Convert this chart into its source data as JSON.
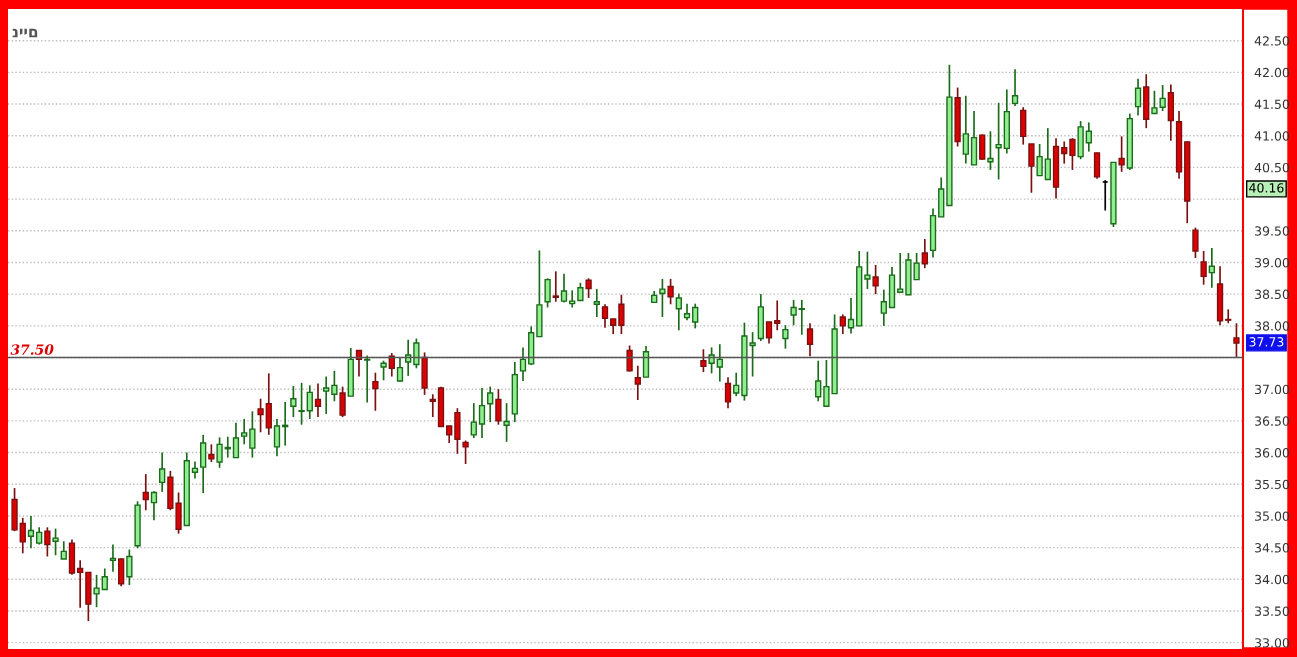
{
  "chart_data": {
    "type": "candlestick",
    "categories": [
      null,
      null,
      null,
      null,
      null,
      null,
      null,
      null,
      null,
      null,
      null,
      null,
      null,
      null,
      null,
      null,
      null,
      null,
      null,
      null,
      null,
      null,
      null,
      null,
      null,
      null,
      null,
      null,
      null,
      null,
      null,
      null,
      null,
      null,
      null,
      null,
      null,
      null,
      null,
      null,
      null,
      null,
      null,
      null,
      null,
      null,
      null,
      null,
      null,
      null,
      null,
      null,
      null,
      null,
      null,
      null,
      null,
      null,
      null,
      null,
      null,
      null,
      null,
      null,
      null,
      null,
      null,
      null,
      null,
      null,
      null,
      null,
      null,
      null,
      null,
      null,
      null,
      null,
      null,
      null,
      null,
      null,
      null,
      null,
      null,
      null,
      null,
      null,
      null,
      null,
      null,
      null,
      null,
      null,
      null,
      null,
      null,
      null,
      null,
      null,
      null,
      null,
      null,
      null,
      null,
      null,
      null,
      null,
      null,
      null,
      null,
      null,
      null,
      null,
      null,
      null,
      null,
      null,
      null,
      null,
      null,
      null,
      null,
      null,
      null,
      null,
      null,
      null,
      null,
      null,
      null,
      null,
      null,
      null,
      null,
      null,
      null,
      null,
      null,
      null,
      null,
      null,
      null,
      null,
      null,
      null,
      null,
      null,
      null,
      null
    ],
    "ohlc": [
      [
        35.26,
        35.44,
        34.76,
        34.78
      ],
      [
        34.88,
        34.97,
        34.41,
        34.59
      ],
      [
        34.68,
        35.0,
        34.49,
        34.77
      ],
      [
        34.57,
        34.82,
        34.55,
        34.74
      ],
      [
        34.76,
        34.82,
        34.36,
        34.55
      ],
      [
        34.6,
        34.8,
        34.38,
        34.65
      ],
      [
        34.32,
        34.6,
        34.32,
        34.44
      ],
      [
        34.57,
        34.63,
        34.07,
        34.1
      ],
      [
        34.17,
        34.3,
        33.55,
        34.11
      ],
      [
        34.11,
        34.11,
        33.34,
        33.61
      ],
      [
        33.77,
        34.07,
        33.56,
        33.86
      ],
      [
        33.84,
        34.17,
        33.84,
        34.04
      ],
      [
        34.3,
        34.55,
        34.12,
        34.33
      ],
      [
        34.32,
        34.33,
        33.89,
        33.93
      ],
      [
        34.04,
        34.47,
        33.91,
        34.36
      ],
      [
        34.53,
        35.23,
        34.49,
        35.17
      ],
      [
        35.37,
        35.66,
        35.09,
        35.26
      ],
      [
        35.21,
        35.39,
        34.93,
        35.37
      ],
      [
        35.53,
        36.0,
        35.38,
        35.74
      ],
      [
        35.61,
        35.71,
        35.09,
        35.12
      ],
      [
        35.2,
        35.37,
        34.72,
        34.79
      ],
      [
        34.85,
        36.0,
        34.85,
        35.87
      ],
      [
        35.69,
        35.86,
        35.59,
        35.75
      ],
      [
        35.77,
        36.28,
        35.36,
        36.15
      ],
      [
        35.97,
        36.13,
        35.85,
        35.9
      ],
      [
        35.85,
        36.24,
        35.76,
        36.13
      ],
      [
        36.06,
        36.25,
        35.92,
        36.08
      ],
      [
        35.92,
        36.47,
        35.92,
        36.23
      ],
      [
        36.26,
        36.53,
        36.13,
        36.31
      ],
      [
        36.07,
        36.65,
        35.92,
        36.37
      ],
      [
        36.69,
        36.85,
        36.32,
        36.6
      ],
      [
        36.77,
        37.25,
        36.28,
        36.39
      ],
      [
        36.09,
        36.53,
        35.94,
        36.42
      ],
      [
        36.41,
        36.8,
        36.11,
        36.43
      ],
      [
        36.73,
        37.05,
        36.56,
        36.85
      ],
      [
        36.65,
        37.1,
        36.44,
        36.66
      ],
      [
        36.66,
        37.06,
        36.53,
        36.95
      ],
      [
        36.84,
        37.09,
        36.56,
        36.73
      ],
      [
        36.97,
        37.2,
        36.61,
        37.02
      ],
      [
        36.92,
        37.29,
        36.81,
        37.06
      ],
      [
        36.94,
        37.04,
        36.56,
        36.59
      ],
      [
        36.89,
        37.65,
        36.89,
        37.47
      ],
      [
        37.61,
        37.62,
        37.2,
        37.47
      ],
      [
        37.46,
        37.53,
        36.79,
        37.47
      ],
      [
        37.12,
        37.26,
        36.66,
        37.01
      ],
      [
        37.35,
        37.45,
        37.14,
        37.41
      ],
      [
        37.52,
        37.57,
        37.2,
        37.33
      ],
      [
        37.13,
        37.5,
        37.12,
        37.34
      ],
      [
        37.43,
        37.78,
        37.21,
        37.54
      ],
      [
        37.39,
        37.8,
        37.33,
        37.73
      ],
      [
        37.5,
        37.58,
        36.91,
        37.02
      ],
      [
        36.84,
        36.92,
        36.56,
        36.81
      ],
      [
        37.02,
        37.04,
        36.41,
        36.41
      ],
      [
        36.42,
        36.42,
        36.15,
        36.28
      ],
      [
        36.63,
        36.7,
        35.98,
        36.21
      ],
      [
        36.16,
        36.19,
        35.82,
        36.09
      ],
      [
        36.28,
        36.78,
        36.23,
        36.48
      ],
      [
        36.45,
        37.02,
        36.23,
        36.74
      ],
      [
        36.77,
        37.04,
        36.48,
        36.94
      ],
      [
        36.84,
        37.0,
        36.44,
        36.5
      ],
      [
        36.43,
        36.78,
        36.17,
        36.49
      ],
      [
        36.61,
        37.43,
        36.48,
        37.23
      ],
      [
        37.29,
        37.66,
        37.13,
        37.47
      ],
      [
        37.4,
        37.99,
        37.38,
        37.89
      ],
      [
        37.83,
        39.19,
        37.83,
        38.33
      ],
      [
        38.38,
        38.75,
        38.29,
        38.73
      ],
      [
        38.47,
        38.86,
        38.38,
        38.45
      ],
      [
        38.39,
        38.82,
        38.37,
        38.55
      ],
      [
        38.35,
        38.56,
        38.29,
        38.39
      ],
      [
        38.4,
        38.68,
        38.4,
        38.6
      ],
      [
        38.72,
        38.75,
        38.44,
        38.59
      ],
      [
        38.34,
        38.58,
        38.14,
        38.38
      ],
      [
        38.3,
        38.34,
        37.97,
        38.12
      ],
      [
        38.11,
        38.11,
        37.87,
        38.01
      ],
      [
        38.34,
        38.49,
        37.87,
        38.01
      ],
      [
        37.61,
        37.69,
        37.28,
        37.29
      ],
      [
        37.18,
        37.37,
        36.83,
        37.08
      ],
      [
        37.19,
        37.68,
        37.19,
        37.59
      ],
      [
        38.37,
        38.55,
        38.37,
        38.48
      ],
      [
        38.51,
        38.74,
        38.14,
        38.58
      ],
      [
        38.62,
        38.74,
        38.34,
        38.46
      ],
      [
        38.27,
        38.51,
        37.93,
        38.44
      ],
      [
        38.13,
        38.35,
        38.09,
        38.19
      ],
      [
        38.06,
        38.35,
        37.96,
        38.29
      ],
      [
        37.45,
        37.63,
        37.27,
        37.36
      ],
      [
        37.41,
        37.66,
        37.25,
        37.54
      ],
      [
        37.35,
        37.71,
        37.12,
        37.47
      ],
      [
        37.09,
        37.19,
        36.7,
        36.8
      ],
      [
        36.94,
        37.26,
        36.89,
        37.06
      ],
      [
        36.9,
        38.05,
        36.82,
        37.84
      ],
      [
        37.69,
        37.9,
        37.2,
        37.73
      ],
      [
        37.8,
        38.5,
        37.76,
        38.3
      ],
      [
        38.06,
        38.06,
        37.72,
        37.81
      ],
      [
        38.08,
        38.4,
        37.93,
        38.04
      ],
      [
        37.8,
        38.01,
        37.64,
        37.94
      ],
      [
        38.17,
        38.41,
        38.01,
        38.29
      ],
      [
        38.26,
        38.41,
        37.86,
        38.27
      ],
      [
        37.95,
        38.04,
        37.52,
        37.71
      ],
      [
        36.88,
        37.45,
        36.81,
        37.13
      ],
      [
        36.73,
        37.46,
        36.73,
        37.04
      ],
      [
        36.93,
        38.18,
        36.93,
        37.95
      ],
      [
        38.14,
        38.18,
        37.87,
        38.0
      ],
      [
        37.97,
        38.44,
        37.88,
        38.1
      ],
      [
        38.0,
        39.18,
        38.0,
        38.93
      ],
      [
        38.74,
        39.17,
        38.58,
        38.8
      ],
      [
        38.77,
        38.96,
        38.5,
        38.63
      ],
      [
        38.2,
        38.57,
        38.0,
        38.38
      ],
      [
        38.29,
        38.93,
        38.29,
        38.8
      ],
      [
        38.53,
        39.15,
        38.53,
        38.58
      ],
      [
        38.49,
        39.15,
        38.49,
        39.04
      ],
      [
        38.73,
        39.15,
        38.73,
        38.99
      ],
      [
        39.15,
        39.37,
        38.91,
        38.98
      ],
      [
        39.19,
        39.85,
        39.08,
        39.74
      ],
      [
        39.72,
        40.34,
        39.72,
        40.16
      ],
      [
        39.9,
        42.12,
        39.9,
        41.61
      ],
      [
        41.6,
        41.76,
        40.83,
        40.91
      ],
      [
        40.71,
        41.63,
        40.56,
        41.03
      ],
      [
        40.54,
        41.39,
        40.54,
        40.97
      ],
      [
        41.01,
        41.02,
        40.62,
        40.63
      ],
      [
        40.59,
        41.07,
        40.46,
        40.64
      ],
      [
        40.81,
        41.52,
        40.31,
        40.86
      ],
      [
        40.8,
        41.73,
        40.72,
        41.38
      ],
      [
        41.51,
        42.05,
        41.47,
        41.63
      ],
      [
        41.4,
        41.45,
        40.86,
        40.99
      ],
      [
        40.87,
        40.87,
        40.1,
        40.52
      ],
      [
        40.37,
        40.87,
        40.37,
        40.67
      ],
      [
        40.31,
        41.12,
        40.31,
        40.63
      ],
      [
        40.83,
        40.96,
        40.01,
        40.19
      ],
      [
        40.81,
        40.91,
        40.56,
        40.72
      ],
      [
        40.94,
        40.96,
        40.46,
        40.69
      ],
      [
        40.67,
        41.23,
        40.63,
        41.14
      ],
      [
        40.89,
        41.21,
        40.75,
        41.07
      ],
      [
        40.73,
        40.73,
        40.32,
        40.35
      ],
      [
        40.27,
        40.3,
        39.82,
        40.27
      ],
      [
        39.61,
        40.58,
        39.56,
        40.58
      ],
      [
        40.64,
        40.99,
        40.43,
        40.54
      ],
      [
        40.49,
        41.35,
        40.46,
        41.27
      ],
      [
        41.46,
        41.9,
        41.32,
        41.75
      ],
      [
        41.77,
        41.97,
        41.12,
        41.26
      ],
      [
        41.35,
        41.71,
        41.35,
        41.44
      ],
      [
        41.45,
        41.8,
        41.39,
        41.59
      ],
      [
        41.68,
        41.81,
        40.92,
        41.24
      ],
      [
        41.22,
        41.39,
        40.32,
        40.43
      ],
      [
        40.9,
        40.91,
        39.62,
        39.97
      ],
      [
        39.51,
        39.55,
        39.07,
        39.18
      ],
      [
        39.01,
        39.18,
        38.65,
        38.78
      ],
      [
        38.84,
        39.23,
        38.6,
        38.94
      ],
      [
        38.66,
        38.94,
        38.01,
        38.08
      ],
      [
        38.1,
        38.26,
        38.04,
        38.09
      ],
      [
        37.81,
        38.04,
        37.51,
        37.73
      ]
    ],
    "ylim": [
      32.9,
      43.0
    ],
    "yticks": [
      {
        "value": 33,
        "label": "33.00"
      },
      {
        "value": 33.5,
        "label": "33.50"
      },
      {
        "value": 34,
        "label": "34.00"
      },
      {
        "value": 34.5,
        "label": "34.50"
      },
      {
        "value": 35,
        "label": "35.00"
      },
      {
        "value": 35.5,
        "label": "35.50"
      },
      {
        "value": 36,
        "label": "36.00"
      },
      {
        "value": 36.5,
        "label": "36.50"
      },
      {
        "value": 37,
        "label": "37.00"
      },
      {
        "value": 37.5,
        "label": null
      },
      {
        "value": 38,
        "label": "38.00"
      },
      {
        "value": 38.5,
        "label": "38.50"
      },
      {
        "value": 39,
        "label": "39.00"
      },
      {
        "value": 39.5,
        "label": "39.50"
      },
      {
        "value": 40,
        "label": null
      },
      {
        "value": 40.5,
        "label": "40.50"
      },
      {
        "value": 41,
        "label": "41.00"
      },
      {
        "value": 41.5,
        "label": "41.50"
      },
      {
        "value": 42,
        "label": "42.00"
      },
      {
        "value": 42.5,
        "label": "42.50"
      }
    ],
    "ref_lines": [
      {
        "axis": "y",
        "value": 37.5,
        "label": "37.50",
        "color": "#555555"
      }
    ],
    "annotations": [
      "ניים",
      "40.16",
      "37.73"
    ],
    "grid": "y",
    "tick_labels": "y"
  }
}
